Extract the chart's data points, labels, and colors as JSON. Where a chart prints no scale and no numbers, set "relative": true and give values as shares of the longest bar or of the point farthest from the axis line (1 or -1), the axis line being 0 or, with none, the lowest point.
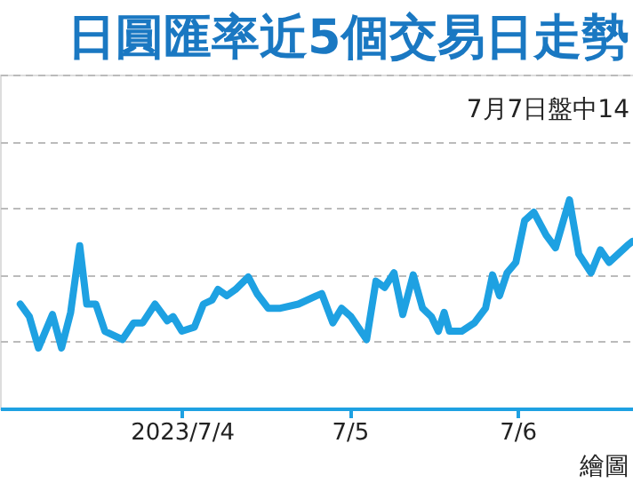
{
  "chart_data": {
    "type": "line",
    "title": "日圓匯率近5個交易日走勢",
    "subtitle": "7月7日盤中14",
    "annotations": [
      "繪圖"
    ],
    "relative": true,
    "grid": "y",
    "marker": "none",
    "line_style": "solid",
    "x": [
      "2023-07-03T00:54",
      "2023-07-03T02:12",
      "2023-07-03T03:30",
      "2023-07-03T05:30",
      "2023-07-03T06:48",
      "2023-07-03T08:06",
      "2023-07-03T09:24",
      "2023-07-03T10:24",
      "2023-07-03T11:42",
      "2023-07-03T13:00",
      "2023-07-03T15:30",
      "2023-07-03T17:06",
      "2023-07-03T18:24",
      "2023-07-03T20:10",
      "2023-07-03T21:55",
      "2023-07-03T22:45",
      "2023-07-04T00:00",
      "2023-07-04T01:48",
      "2023-07-04T03:05",
      "2023-07-04T04:20",
      "2023-07-04T05:10",
      "2023-07-04T06:25",
      "2023-07-04T07:40",
      "2023-07-04T09:30",
      "2023-07-04T10:45",
      "2023-07-04T12:20",
      "2023-07-04T14:05",
      "2023-07-04T16:40",
      "2023-07-04T19:15",
      "2023-07-04T20:00",
      "2023-07-04T21:35",
      "2023-07-04T22:50",
      "2023-07-05T00:10",
      "2023-07-05T02:25",
      "2023-07-05T03:45",
      "2023-07-05T05:00",
      "2023-07-05T06:20",
      "2023-07-05T07:35",
      "2023-07-05T09:05",
      "2023-07-05T10:25",
      "2023-07-05T11:40",
      "2023-07-05T12:40",
      "2023-07-05T13:30",
      "2023-07-05T14:15",
      "2023-07-05T16:00",
      "2023-07-05T17:50",
      "2023-07-05T19:25",
      "2023-07-05T20:25",
      "2023-07-05T21:25",
      "2023-07-05T22:30",
      "2023-07-05T23:45",
      "2023-07-06T01:00",
      "2023-07-06T02:20",
      "2023-07-06T04:05",
      "2023-07-06T05:25",
      "2023-07-06T07:25",
      "2023-07-06T08:45",
      "2023-07-06T10:30",
      "2023-07-06T11:50",
      "2023-07-06T13:05",
      "2023-07-06T15:40",
      "2023-07-06T16:25"
    ],
    "series": [
      {
        "color": "#1ea1e2",
        "values": [
          0.5,
          0.44,
          0.29,
          0.45,
          0.29,
          0.46,
          0.78,
          0.5,
          0.5,
          0.37,
          0.33,
          0.41,
          0.41,
          0.5,
          0.42,
          0.44,
          0.37,
          0.39,
          0.5,
          0.52,
          0.57,
          0.54,
          0.57,
          0.63,
          0.55,
          0.48,
          0.48,
          0.5,
          0.54,
          0.55,
          0.41,
          0.48,
          0.44,
          0.33,
          0.61,
          0.58,
          0.65,
          0.45,
          0.64,
          0.48,
          0.44,
          0.37,
          0.46,
          0.37,
          0.37,
          0.41,
          0.48,
          0.64,
          0.54,
          0.65,
          0.7,
          0.9,
          0.94,
          0.83,
          0.77,
          1.0,
          0.74,
          0.65,
          0.76,
          0.7,
          0.78,
          0.8
        ]
      }
    ],
    "xlim": [
      "2023-07-02T22:00",
      "2023-07-06T16:30"
    ],
    "xticks": [
      {
        "value": "2023-07-04T00:00",
        "label": "2023/7/4"
      },
      {
        "value": "2023-07-05T00:00",
        "label": "7/5"
      },
      {
        "value": "2023-07-06T00:00",
        "label": "7/6"
      }
    ]
  }
}
